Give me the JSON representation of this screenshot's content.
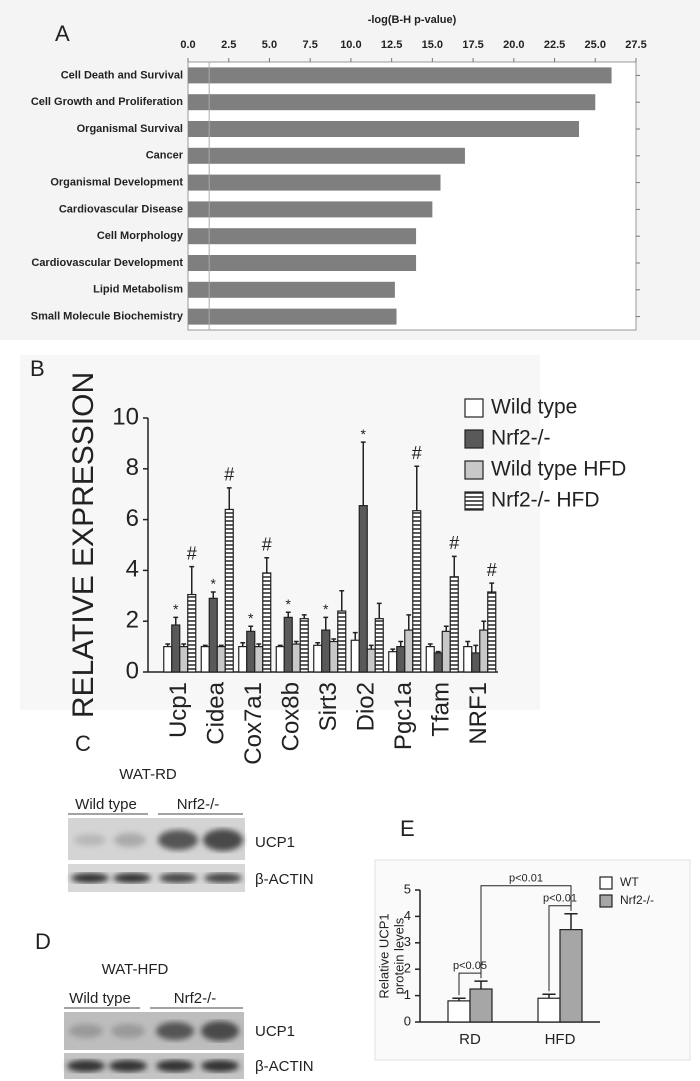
{
  "chart_data": [
    {
      "type": "barh",
      "panel_label": "A",
      "title": "-log(B-H p-value)",
      "categories": [
        "Cell Death and Survival",
        "Cell Growth and Proliferation",
        "Organismal Survival",
        "Cancer",
        "Organismal Development",
        "Cardiovascular Disease",
        "Cell Morphology",
        "Cardiovascular Development",
        "Lipid Metabolism",
        "Small Molecule Biochemistry"
      ],
      "values": [
        26.0,
        25.0,
        24.0,
        17.0,
        15.5,
        15.0,
        14.0,
        14.0,
        12.7,
        12.8
      ],
      "color": "#7f7f7f",
      "reference_line": 1.3,
      "xlim": [
        0,
        27.5
      ],
      "xticks": [
        {
          "value": 0,
          "label": "0.0"
        },
        2.5,
        {
          "value": 5,
          "label": "5.0"
        },
        7.5,
        {
          "value": 10,
          "label": "10.0"
        },
        12.5,
        {
          "value": 15,
          "label": "15.0"
        },
        17.5,
        {
          "value": 20,
          "label": "20.0"
        },
        22.5,
        {
          "value": 25,
          "label": "25.0"
        },
        27.5
      ]
    },
    {
      "type": "bar",
      "panel_label": "B",
      "ylabel": "RELATIVE EXPRESSION",
      "categories": [
        "Ucp1",
        "Cidea",
        "Cox7a1",
        "Cox8b",
        "Sirt3",
        "Dio2",
        "Pgc1a",
        "Tfam",
        "NRF1"
      ],
      "series": [
        {
          "name": "Wild type",
          "color": "#ffffff",
          "values": [
            1.0,
            1.0,
            1.0,
            1.0,
            1.05,
            1.25,
            0.8,
            1.0,
            1.0
          ],
          "errors": [
            0.1,
            0.05,
            0.15,
            0.05,
            0.1,
            0.3,
            0.1,
            0.1,
            0.2
          ]
        },
        {
          "name": "Nrf2-/-",
          "color": "#595959",
          "values": [
            1.85,
            2.9,
            1.6,
            2.15,
            1.65,
            6.55,
            1.0,
            0.75,
            0.75
          ],
          "errors": [
            0.3,
            0.25,
            0.2,
            0.2,
            0.5,
            2.5,
            0.2,
            0.05,
            0.3
          ],
          "annotations": [
            "*",
            "*",
            "*",
            "*",
            "*",
            "*",
            null,
            null,
            null
          ]
        },
        {
          "name": "Wild type HFD",
          "color": "#c8c8c8",
          "values": [
            1.0,
            1.0,
            1.0,
            1.1,
            1.2,
            0.9,
            1.65,
            1.6,
            1.65
          ],
          "errors": [
            0.1,
            0.05,
            0.1,
            0.1,
            0.1,
            0.15,
            0.6,
            0.2,
            0.35
          ]
        },
        {
          "name": "Nrf2-/- HFD",
          "color": "#ffffff",
          "hatch": "horizontal",
          "values": [
            3.05,
            6.4,
            3.9,
            2.1,
            2.4,
            2.1,
            6.35,
            3.75,
            3.15
          ],
          "errors": [
            1.1,
            0.85,
            0.6,
            0.15,
            0.8,
            0.6,
            1.75,
            0.8,
            0.35
          ],
          "annotations": [
            "#",
            "#",
            "#",
            null,
            null,
            null,
            "#",
            "#",
            "#"
          ]
        }
      ],
      "ylim": [
        0,
        10
      ],
      "yticks": [
        0,
        2,
        4,
        6,
        8,
        10
      ]
    },
    {
      "type": "bar",
      "panel_label": "E",
      "ylabel": [
        "Relative UCP1",
        "protein levels"
      ],
      "categories": [
        "RD",
        "HFD"
      ],
      "series": [
        {
          "name": "WT",
          "color": "#ffffff",
          "values": [
            0.8,
            0.9
          ],
          "errors": [
            0.1,
            0.15
          ]
        },
        {
          "name": "Nrf2-/-",
          "color": "#a6a6a6",
          "values": [
            1.25,
            3.5
          ],
          "errors": [
            0.3,
            0.6
          ]
        }
      ],
      "comparisons": [
        "p<0.05",
        "p<0.01",
        "p<0.01"
      ],
      "ylim": [
        0,
        5
      ],
      "yticks": [
        0,
        1,
        2,
        3,
        4,
        5
      ]
    }
  ],
  "blots": [
    {
      "panel_label": "C",
      "title": "WAT-RD",
      "groups": [
        "Wild type",
        "Nrf2-/-"
      ],
      "rows": [
        "UCP1",
        "β-ACTIN"
      ]
    },
    {
      "panel_label": "D",
      "title": "WAT-HFD",
      "groups": [
        "Wild type",
        "Nrf2-/-"
      ],
      "rows": [
        "UCP1",
        "β-ACTIN"
      ]
    }
  ]
}
